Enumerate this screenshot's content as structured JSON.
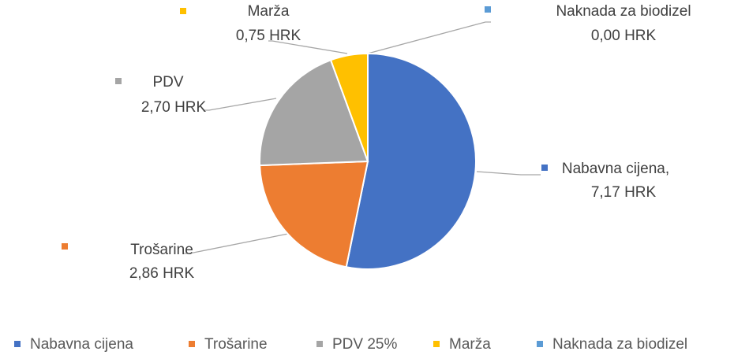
{
  "chart_data": {
    "type": "pie",
    "categories": [
      "Nabavna cijena",
      "Trošarine",
      "PDV 25%",
      "Marža",
      "Naknada za biodizel"
    ],
    "data_label_names": [
      "Nabavna cijena,",
      "Trošarine",
      "PDV",
      "Marža",
      "Naknada za biodizel"
    ],
    "values": [
      7.17,
      2.86,
      2.7,
      0.75,
      0.0
    ],
    "value_labels": [
      "7,17 HRK",
      "2,86 HRK",
      "2,70 HRK",
      "0,75 HRK",
      "0,00 HRK"
    ],
    "colors": [
      "#4472c4",
      "#ed7d31",
      "#a5a5a5",
      "#ffc000",
      "#5b9bd5"
    ],
    "legend": "bottom"
  }
}
